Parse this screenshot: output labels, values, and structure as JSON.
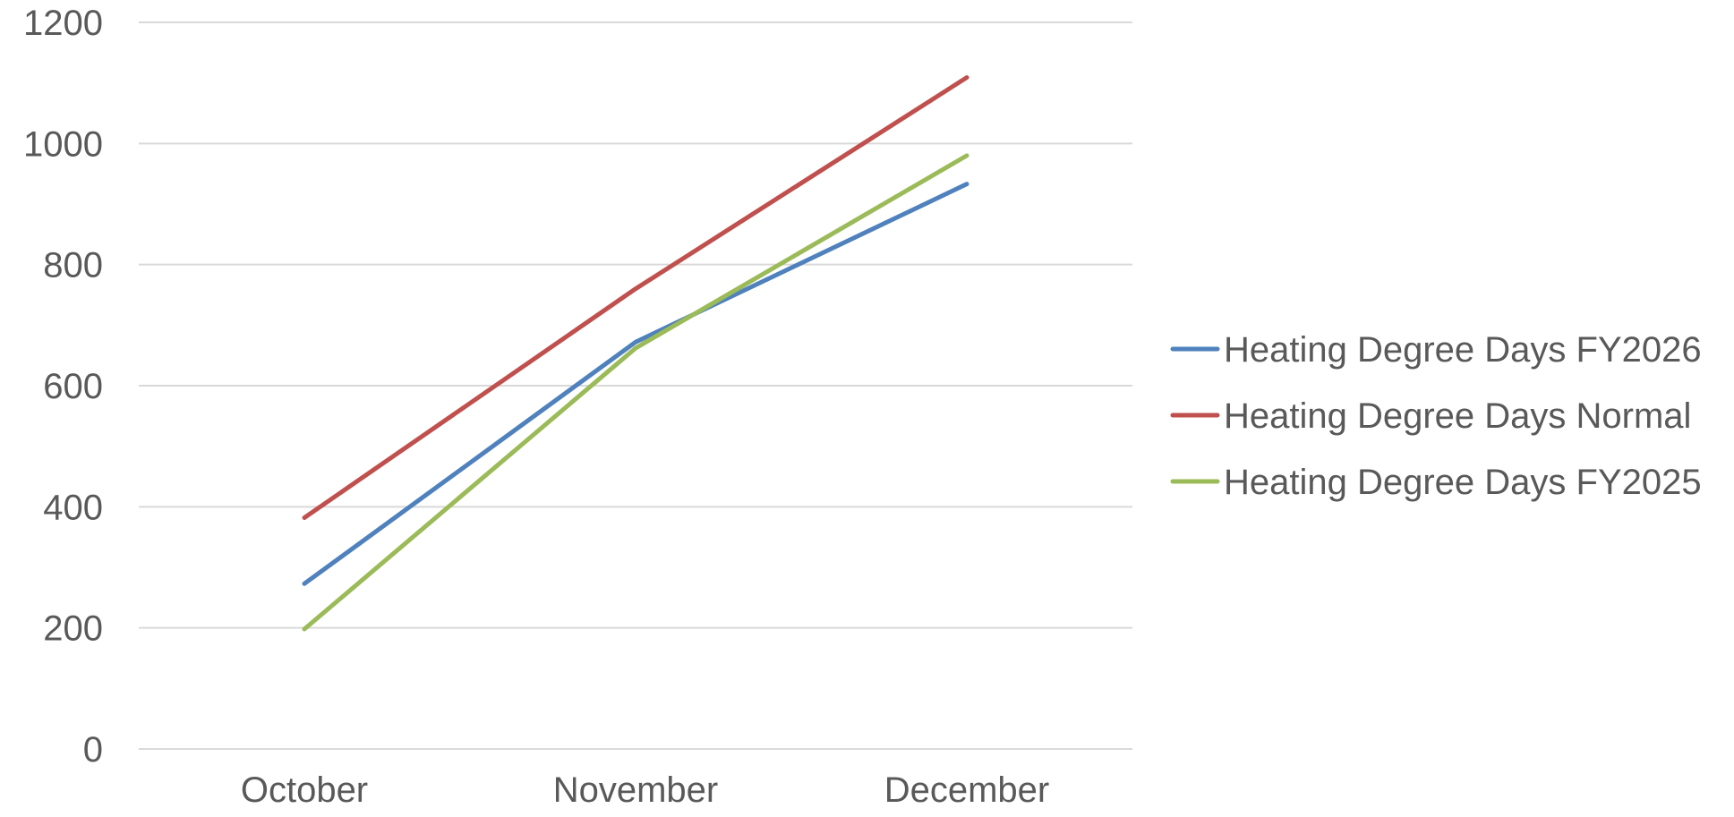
{
  "chart_data": {
    "type": "line",
    "title": "",
    "xlabel": "",
    "ylabel": "",
    "categories": [
      "October",
      "November",
      "December"
    ],
    "ylim": [
      0,
      1200
    ],
    "yticks": [
      0,
      200,
      400,
      600,
      800,
      1000,
      1200
    ],
    "grid": true,
    "legend_position": "right",
    "series": [
      {
        "name": "Heating Degree Days FY2026",
        "color": "#4f81bd",
        "values": [
          273,
          672,
          933
        ]
      },
      {
        "name": "Heating Degree Days Normal",
        "color": "#c0504d",
        "values": [
          382,
          760,
          1109
        ]
      },
      {
        "name": "Heating Degree Days FY2025",
        "color": "#9bbb59",
        "values": [
          198,
          662,
          980
        ]
      }
    ]
  }
}
